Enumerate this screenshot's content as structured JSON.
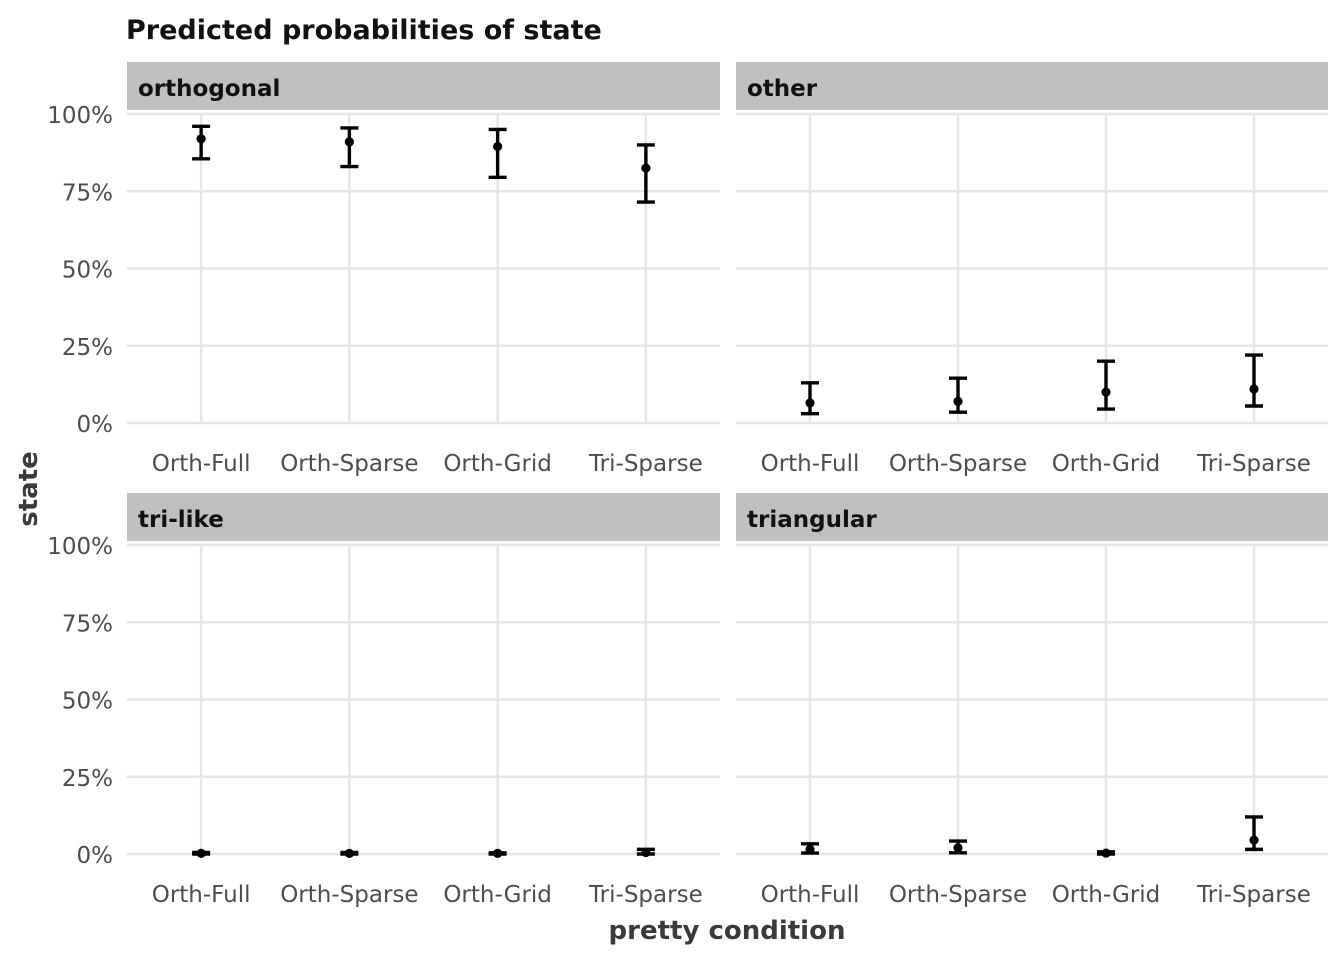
{
  "chart_data": {
    "type": "scatter",
    "title": "Predicted probabilities of state",
    "xlabel": "pretty condition",
    "ylabel": "state",
    "categories": [
      "Orth-Full",
      "Orth-Sparse",
      "Orth-Grid",
      "Tri-Sparse"
    ],
    "ylim": [
      0,
      1
    ],
    "yticks": [
      0,
      0.25,
      0.5,
      0.75,
      1.0
    ],
    "ytick_labels": [
      "0%",
      "25%",
      "50%",
      "75%",
      "100%"
    ],
    "grid": true,
    "facets": [
      {
        "name": "orthogonal",
        "points": [
          {
            "x": "Orth-Full",
            "y": 0.92,
            "low": 0.855,
            "high": 0.96
          },
          {
            "x": "Orth-Sparse",
            "y": 0.91,
            "low": 0.83,
            "high": 0.955
          },
          {
            "x": "Orth-Grid",
            "y": 0.895,
            "low": 0.795,
            "high": 0.95
          },
          {
            "x": "Tri-Sparse",
            "y": 0.825,
            "low": 0.715,
            "high": 0.9
          }
        ]
      },
      {
        "name": "other",
        "points": [
          {
            "x": "Orth-Full",
            "y": 0.065,
            "low": 0.03,
            "high": 0.13
          },
          {
            "x": "Orth-Sparse",
            "y": 0.07,
            "low": 0.035,
            "high": 0.145
          },
          {
            "x": "Orth-Grid",
            "y": 0.1,
            "low": 0.045,
            "high": 0.2
          },
          {
            "x": "Tri-Sparse",
            "y": 0.11,
            "low": 0.055,
            "high": 0.22
          }
        ]
      },
      {
        "name": "tri-like",
        "points": [
          {
            "x": "Orth-Full",
            "y": 0.002,
            "low": 0.0,
            "high": 0.005
          },
          {
            "x": "Orth-Sparse",
            "y": 0.002,
            "low": 0.0,
            "high": 0.005
          },
          {
            "x": "Orth-Grid",
            "y": 0.002,
            "low": 0.0,
            "high": 0.004
          },
          {
            "x": "Tri-Sparse",
            "y": 0.005,
            "low": 0.0,
            "high": 0.015
          }
        ]
      },
      {
        "name": "triangular",
        "points": [
          {
            "x": "Orth-Full",
            "y": 0.015,
            "low": 0.003,
            "high": 0.033
          },
          {
            "x": "Orth-Sparse",
            "y": 0.02,
            "low": 0.004,
            "high": 0.042
          },
          {
            "x": "Orth-Grid",
            "y": 0.003,
            "low": 0.0,
            "high": 0.007
          },
          {
            "x": "Tri-Sparse",
            "y": 0.045,
            "low": 0.015,
            "high": 0.12
          }
        ]
      }
    ]
  }
}
